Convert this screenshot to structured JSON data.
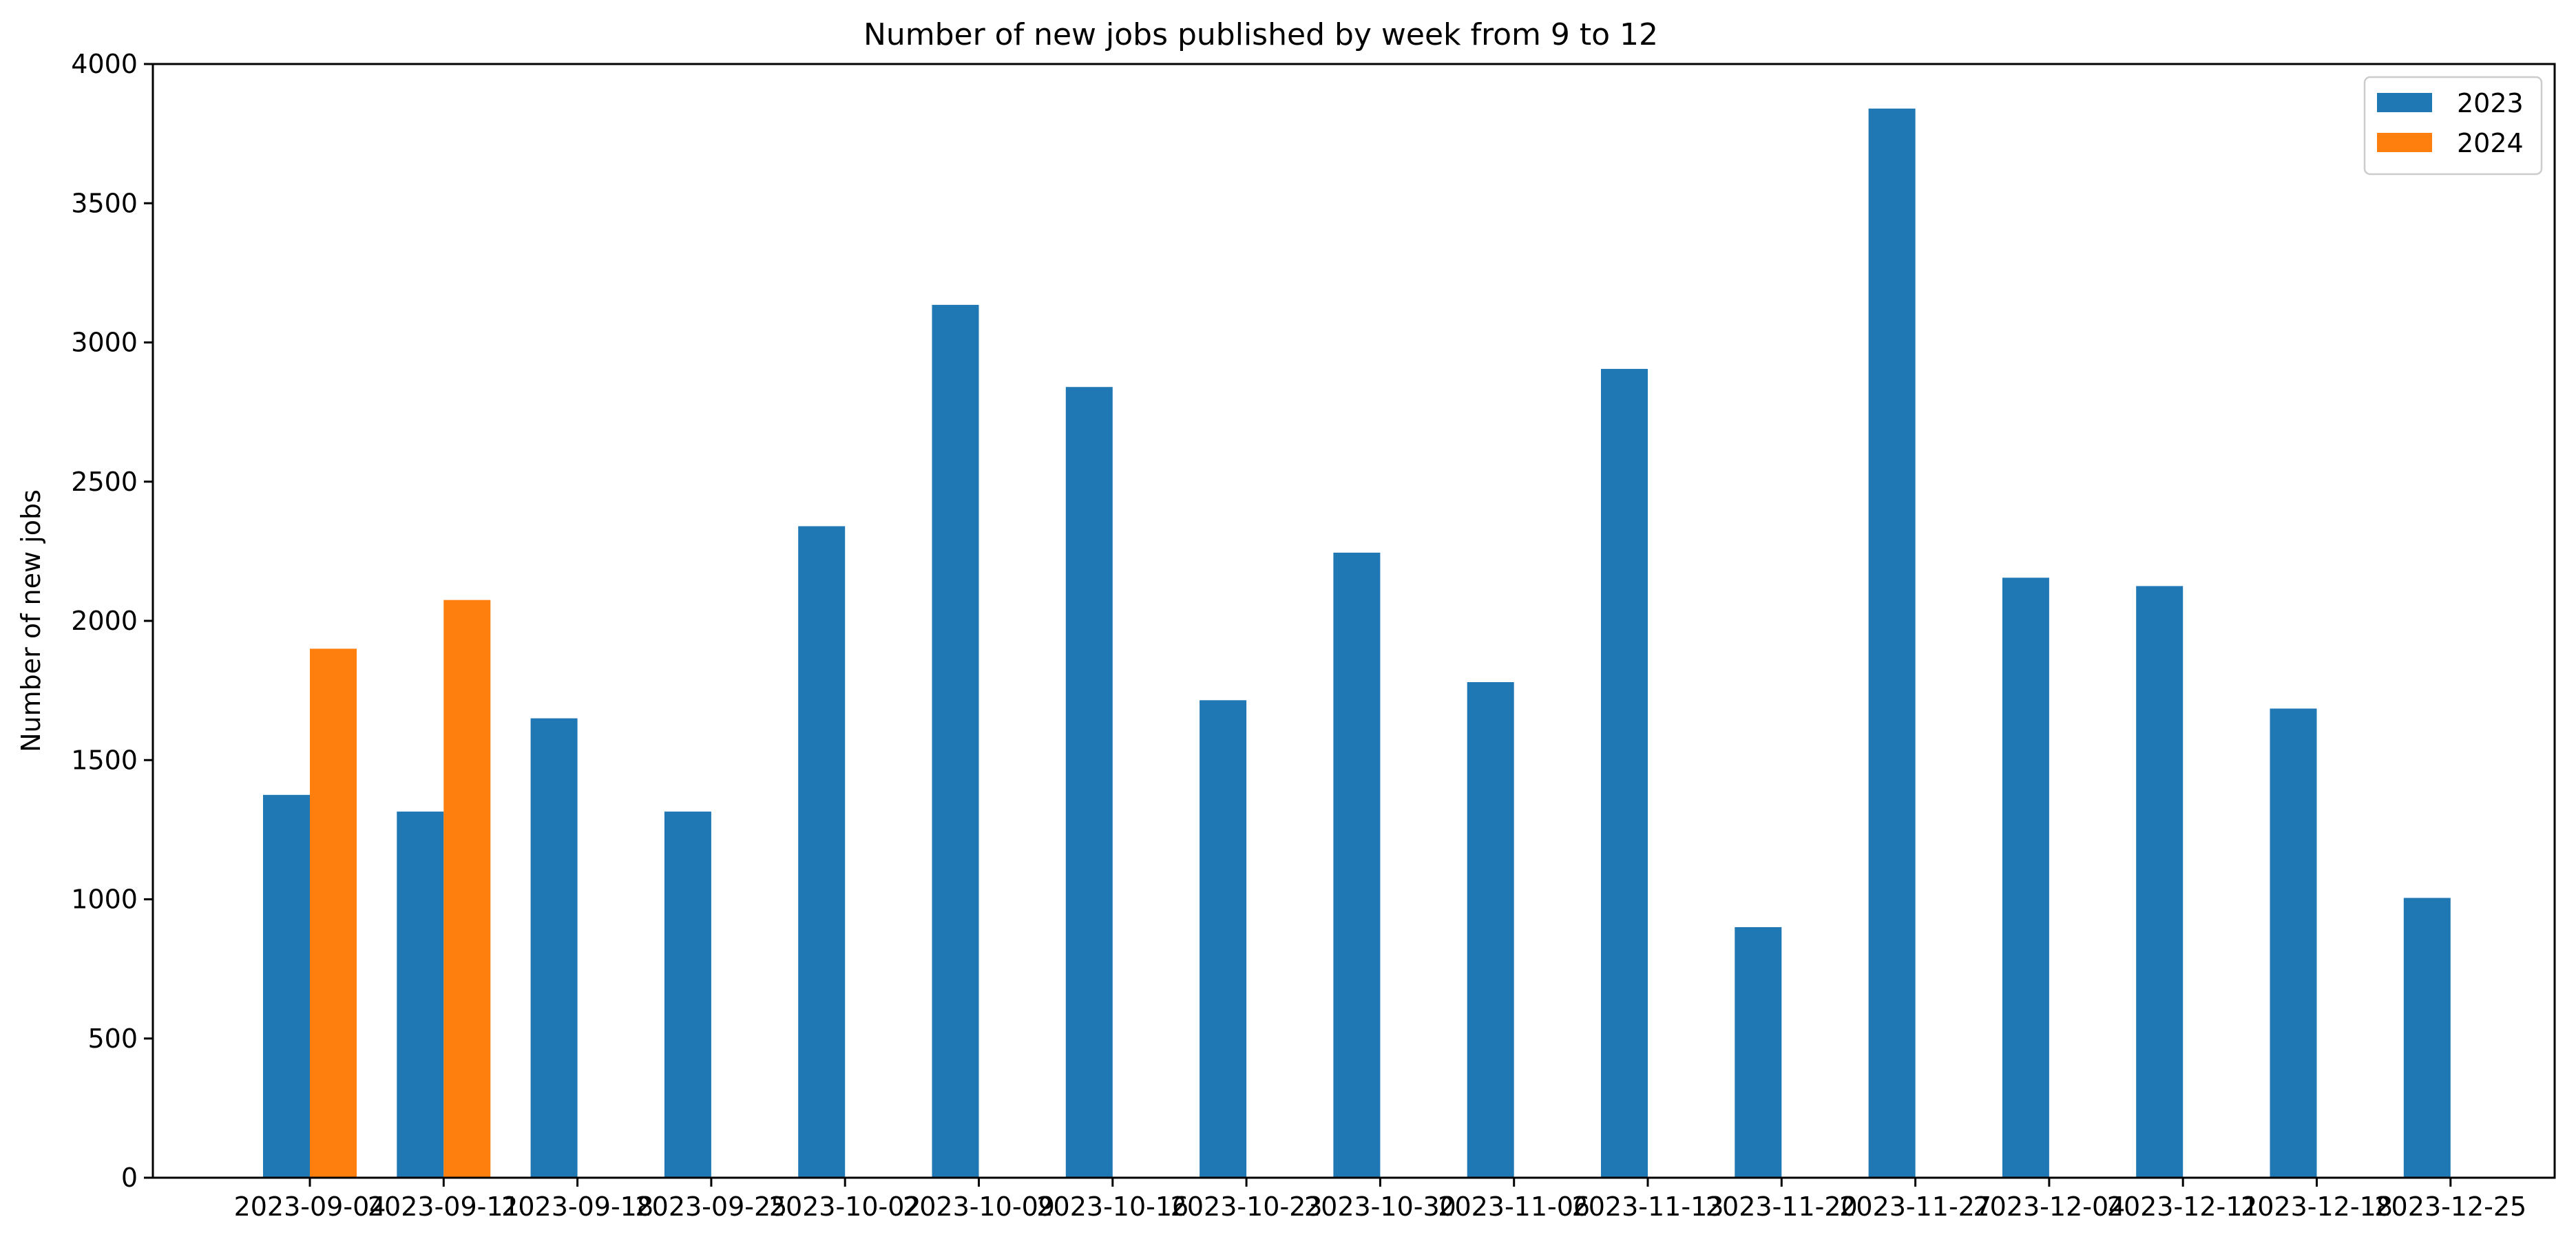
{
  "chart_data": {
    "type": "bar",
    "title": "Number of new jobs published by week from 9 to 12",
    "xlabel": "",
    "ylabel": "Number of new jobs",
    "ylim": [
      0,
      4000
    ],
    "yticks": [
      0,
      500,
      1000,
      1500,
      2000,
      2500,
      3000,
      3500,
      4000
    ],
    "categories": [
      "2023-09-04",
      "2023-09-11",
      "2023-09-18",
      "2023-09-25",
      "2023-10-02",
      "2023-10-09",
      "2023-10-16",
      "2023-10-23",
      "2023-10-30",
      "2023-11-06",
      "2023-11-13",
      "2023-11-20",
      "2023-11-27",
      "2023-12-04",
      "2023-12-11",
      "2023-12-18",
      "2023-12-25"
    ],
    "series": [
      {
        "name": "2023",
        "color": "#1f77b4",
        "values": [
          1375,
          1315,
          1650,
          1315,
          2340,
          3135,
          2840,
          1715,
          2245,
          1780,
          2905,
          900,
          3840,
          2155,
          2125,
          1685,
          1005
        ]
      },
      {
        "name": "2024",
        "color": "#ff7f0e",
        "values": [
          1900,
          2075,
          null,
          null,
          null,
          null,
          null,
          null,
          null,
          null,
          null,
          null,
          null,
          null,
          null,
          null,
          null
        ]
      }
    ],
    "legend_position": "top-right",
    "grid": false
  }
}
